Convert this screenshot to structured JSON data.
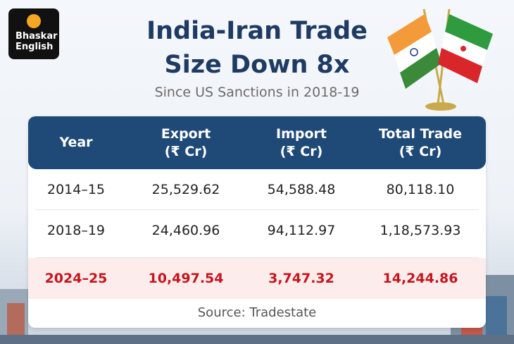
{
  "logo": {
    "lines": [
      "Bhaskar",
      "English"
    ]
  },
  "title": [
    "India-Iran Trade",
    "Size Down 8x"
  ],
  "subtitle": "Since US Sanctions in 2018-19",
  "table": {
    "header": [
      [
        "Year"
      ],
      [
        "Export",
        "(₹ Cr)"
      ],
      [
        "Import",
        "(₹ Cr)"
      ],
      [
        "Total Trade",
        "(₹ Cr)"
      ]
    ],
    "rows": [
      [
        "2014–15",
        "25,529.62",
        "54,588.48",
        "80,118.10"
      ],
      [
        "2018–19",
        "24,460.96",
        "94,112.97",
        "1,18,573.93"
      ],
      [
        "2024–25",
        "10,497.54",
        "3,747.32",
        "14,244.86"
      ]
    ],
    "highlight_row": 2
  },
  "source": "Source: Tradestate"
}
